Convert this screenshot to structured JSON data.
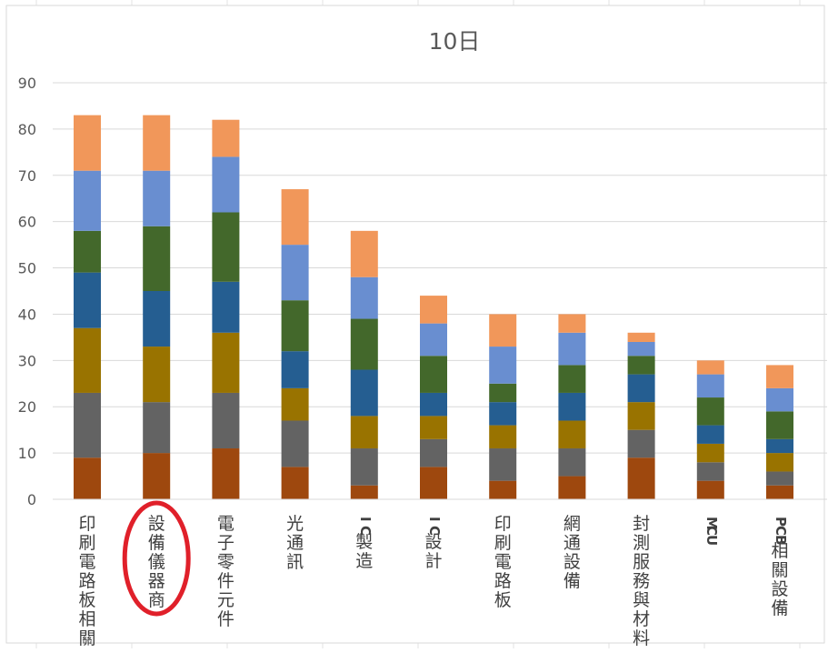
{
  "chart_data": {
    "type": "bar",
    "stacked": true,
    "title": "10日",
    "xlabel": "",
    "ylabel": "",
    "ylim": [
      0,
      90
    ],
    "yticks": [
      0,
      10,
      20,
      30,
      40,
      50,
      60,
      70,
      80,
      90
    ],
    "grid": true,
    "legend": "none",
    "categories": [
      "印刷電路板相關",
      "設備儀器商",
      "電子零件元件",
      "光通訊",
      "IC製造",
      "IC設計",
      "印刷電路板",
      "網通設備",
      "封測服務與材料",
      "MCU",
      "PCB相關設備"
    ],
    "highlight": {
      "category": "設備儀器商",
      "shape": "ellipse",
      "color": "#e0202a"
    },
    "series": [
      {
        "color": "#9e480e",
        "values": [
          9,
          10,
          11,
          7,
          3,
          7,
          4,
          5,
          9,
          4,
          3
        ]
      },
      {
        "color": "#636363",
        "values": [
          14,
          11,
          12,
          10,
          8,
          6,
          7,
          6,
          6,
          4,
          3
        ]
      },
      {
        "color": "#997300",
        "values": [
          14,
          12,
          13,
          7,
          7,
          5,
          5,
          6,
          6,
          4,
          4
        ]
      },
      {
        "color": "#255e91",
        "values": [
          12,
          12,
          11,
          8,
          10,
          5,
          5,
          6,
          6,
          4,
          3
        ]
      },
      {
        "color": "#43682b",
        "values": [
          9,
          14,
          15,
          11,
          11,
          8,
          4,
          6,
          4,
          6,
          6
        ]
      },
      {
        "color": "#698ed0",
        "values": [
          13,
          12,
          12,
          12,
          9,
          7,
          8,
          7,
          3,
          5,
          5
        ]
      },
      {
        "color": "#f1975a",
        "values": [
          12,
          12,
          8,
          12,
          10,
          6,
          7,
          4,
          2,
          3,
          5
        ]
      }
    ]
  }
}
